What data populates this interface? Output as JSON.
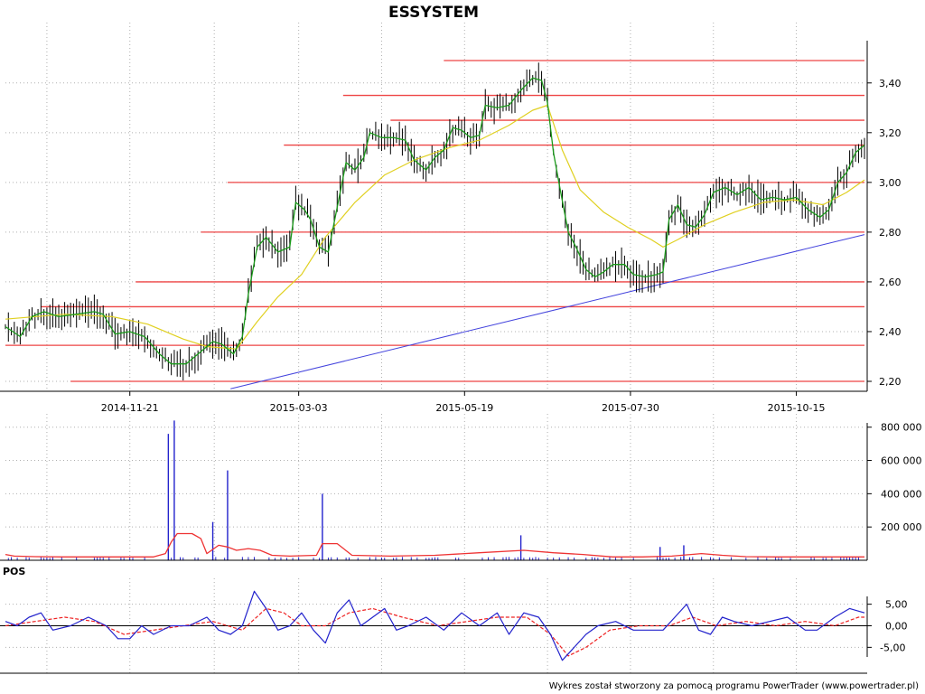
{
  "chart_data": [
    {
      "type": "line",
      "name": "price",
      "title": "ESSYSTEM",
      "x_tick_labels": [
        "2014-11-21",
        "2015-03-03",
        "2015-05-19",
        "2015-07-30",
        "2015-10-15"
      ],
      "y_tick_labels": [
        "2,20",
        "2,40",
        "2,60",
        "2,80",
        "3,00",
        "3,20",
        "3,40"
      ],
      "y_ticks": [
        2.2,
        2.4,
        2.6,
        2.8,
        3.0,
        3.2,
        3.4
      ],
      "ylim": [
        2.16,
        3.57
      ],
      "n_sessions": 290,
      "x_tick_sessions": [
        42,
        99,
        155,
        211,
        267
      ],
      "green_ma_points": [
        [
          0,
          2.42
        ],
        [
          5,
          2.38
        ],
        [
          9,
          2.46
        ],
        [
          13,
          2.48
        ],
        [
          18,
          2.46
        ],
        [
          24,
          2.47
        ],
        [
          30,
          2.48
        ],
        [
          33,
          2.47
        ],
        [
          37,
          2.39
        ],
        [
          42,
          2.4
        ],
        [
          47,
          2.38
        ],
        [
          52,
          2.31
        ],
        [
          56,
          2.27
        ],
        [
          61,
          2.27
        ],
        [
          65,
          2.31
        ],
        [
          70,
          2.36
        ],
        [
          73,
          2.35
        ],
        [
          77,
          2.31
        ],
        [
          80,
          2.38
        ],
        [
          82,
          2.55
        ],
        [
          85,
          2.74
        ],
        [
          88,
          2.78
        ],
        [
          92,
          2.72
        ],
        [
          96,
          2.74
        ],
        [
          98,
          2.92
        ],
        [
          101,
          2.89
        ],
        [
          103,
          2.85
        ],
        [
          106,
          2.74
        ],
        [
          109,
          2.72
        ],
        [
          112,
          2.9
        ],
        [
          115,
          3.08
        ],
        [
          118,
          3.05
        ],
        [
          121,
          3.1
        ],
        [
          123,
          3.2
        ],
        [
          127,
          3.18
        ],
        [
          131,
          3.18
        ],
        [
          135,
          3.17
        ],
        [
          138,
          3.09
        ],
        [
          142,
          3.05
        ],
        [
          145,
          3.1
        ],
        [
          148,
          3.13
        ],
        [
          151,
          3.22
        ],
        [
          154,
          3.21
        ],
        [
          157,
          3.18
        ],
        [
          160,
          3.19
        ],
        [
          162,
          3.31
        ],
        [
          166,
          3.3
        ],
        [
          170,
          3.31
        ],
        [
          174,
          3.37
        ],
        [
          178,
          3.42
        ],
        [
          181,
          3.41
        ],
        [
          183,
          3.32
        ],
        [
          185,
          3.12
        ],
        [
          187,
          2.99
        ],
        [
          190,
          2.8
        ],
        [
          193,
          2.73
        ],
        [
          196,
          2.65
        ],
        [
          199,
          2.62
        ],
        [
          202,
          2.64
        ],
        [
          205,
          2.67
        ],
        [
          209,
          2.67
        ],
        [
          212,
          2.63
        ],
        [
          216,
          2.62
        ],
        [
          220,
          2.63
        ],
        [
          222,
          2.64
        ],
        [
          224,
          2.85
        ],
        [
          227,
          2.91
        ],
        [
          230,
          2.83
        ],
        [
          233,
          2.82
        ],
        [
          236,
          2.87
        ],
        [
          239,
          2.96
        ],
        [
          243,
          2.98
        ],
        [
          247,
          2.95
        ],
        [
          251,
          2.98
        ],
        [
          255,
          2.93
        ],
        [
          259,
          2.94
        ],
        [
          263,
          2.93
        ],
        [
          267,
          2.94
        ],
        [
          271,
          2.89
        ],
        [
          275,
          2.86
        ],
        [
          278,
          2.89
        ],
        [
          281,
          3.0
        ],
        [
          284,
          3.04
        ],
        [
          287,
          3.12
        ],
        [
          290,
          3.15
        ]
      ],
      "yellow_ma_points": [
        [
          0,
          2.45
        ],
        [
          20,
          2.47
        ],
        [
          36,
          2.46
        ],
        [
          48,
          2.43
        ],
        [
          60,
          2.37
        ],
        [
          68,
          2.34
        ],
        [
          78,
          2.33
        ],
        [
          85,
          2.44
        ],
        [
          92,
          2.54
        ],
        [
          100,
          2.63
        ],
        [
          108,
          2.78
        ],
        [
          118,
          2.92
        ],
        [
          128,
          3.03
        ],
        [
          138,
          3.09
        ],
        [
          150,
          3.14
        ],
        [
          160,
          3.17
        ],
        [
          170,
          3.23
        ],
        [
          178,
          3.29
        ],
        [
          183,
          3.31
        ],
        [
          188,
          3.13
        ],
        [
          194,
          2.97
        ],
        [
          202,
          2.88
        ],
        [
          210,
          2.82
        ],
        [
          218,
          2.77
        ],
        [
          222,
          2.74
        ],
        [
          227,
          2.77
        ],
        [
          236,
          2.83
        ],
        [
          246,
          2.88
        ],
        [
          256,
          2.92
        ],
        [
          266,
          2.93
        ],
        [
          276,
          2.91
        ],
        [
          284,
          2.96
        ],
        [
          290,
          3.01
        ]
      ],
      "support_resistance_levels": [
        {
          "value": 2.2,
          "from_session": 22
        },
        {
          "value": 2.345,
          "from_session": 0
        },
        {
          "value": 2.5,
          "from_session": 12
        },
        {
          "value": 2.6,
          "from_session": 44
        },
        {
          "value": 2.8,
          "from_session": 66
        },
        {
          "value": 3.0,
          "from_session": 75
        },
        {
          "value": 3.15,
          "from_session": 94
        },
        {
          "value": 3.25,
          "from_session": 130
        },
        {
          "value": 3.35,
          "from_session": 114
        },
        {
          "value": 3.49,
          "from_session": 148
        }
      ],
      "trendline": {
        "x1": 76,
        "y1": 2.17,
        "x2": 290,
        "y2": 2.79
      }
    },
    {
      "type": "bar",
      "name": "volume",
      "y_tick_labels": [
        "200 000",
        "400 000",
        "600 000",
        "800 000"
      ],
      "y_ticks": [
        200000,
        400000,
        600000,
        800000
      ],
      "ylim": [
        0,
        880000
      ],
      "volume_spikes": [
        {
          "session": 55,
          "value": 760000
        },
        {
          "session": 57,
          "value": 840000
        },
        {
          "session": 70,
          "value": 230000
        },
        {
          "session": 75,
          "value": 540000
        },
        {
          "session": 107,
          "value": 400000
        },
        {
          "session": 174,
          "value": 150000
        },
        {
          "session": 221,
          "value": 80000
        },
        {
          "session": 229,
          "value": 90000
        }
      ],
      "volume_ma_points": [
        [
          0,
          35000
        ],
        [
          3,
          25000
        ],
        [
          10,
          22000
        ],
        [
          20,
          20000
        ],
        [
          30,
          20000
        ],
        [
          40,
          20000
        ],
        [
          50,
          20000
        ],
        [
          54,
          40000
        ],
        [
          56,
          110000
        ],
        [
          58,
          160000
        ],
        [
          63,
          160000
        ],
        [
          66,
          130000
        ],
        [
          68,
          40000
        ],
        [
          72,
          90000
        ],
        [
          75,
          80000
        ],
        [
          78,
          60000
        ],
        [
          82,
          70000
        ],
        [
          86,
          60000
        ],
        [
          90,
          30000
        ],
        [
          96,
          25000
        ],
        [
          105,
          30000
        ],
        [
          107,
          100000
        ],
        [
          112,
          100000
        ],
        [
          117,
          30000
        ],
        [
          130,
          25000
        ],
        [
          145,
          30000
        ],
        [
          160,
          45000
        ],
        [
          175,
          60000
        ],
        [
          185,
          45000
        ],
        [
          195,
          35000
        ],
        [
          205,
          20000
        ],
        [
          215,
          20000
        ],
        [
          225,
          25000
        ],
        [
          235,
          40000
        ],
        [
          242,
          30000
        ],
        [
          250,
          22000
        ],
        [
          260,
          20000
        ],
        [
          270,
          20000
        ],
        [
          280,
          20000
        ],
        [
          290,
          20000
        ]
      ]
    },
    {
      "type": "line",
      "name": "oscillator",
      "panel_label": "POS",
      "y_tick_labels": [
        "5,00",
        "0,00",
        "-5,00"
      ],
      "y_ticks": [
        5,
        0,
        -5
      ],
      "ylim": [
        -11,
        11
      ],
      "blue_points": [
        [
          0,
          1
        ],
        [
          4,
          0
        ],
        [
          8,
          2
        ],
        [
          12,
          3
        ],
        [
          16,
          -1
        ],
        [
          22,
          0
        ],
        [
          28,
          2
        ],
        [
          34,
          0
        ],
        [
          38,
          -3
        ],
        [
          42,
          -3
        ],
        [
          46,
          0
        ],
        [
          50,
          -2
        ],
        [
          56,
          0
        ],
        [
          62,
          0
        ],
        [
          68,
          2
        ],
        [
          72,
          -1
        ],
        [
          76,
          -2
        ],
        [
          80,
          0
        ],
        [
          84,
          8
        ],
        [
          88,
          4
        ],
        [
          92,
          -1
        ],
        [
          96,
          0
        ],
        [
          100,
          3
        ],
        [
          104,
          -1
        ],
        [
          108,
          -4
        ],
        [
          112,
          3
        ],
        [
          116,
          6
        ],
        [
          120,
          0
        ],
        [
          124,
          2
        ],
        [
          128,
          4
        ],
        [
          132,
          -1
        ],
        [
          136,
          0
        ],
        [
          142,
          2
        ],
        [
          148,
          -1
        ],
        [
          154,
          3
        ],
        [
          160,
          0
        ],
        [
          166,
          3
        ],
        [
          170,
          -2
        ],
        [
          175,
          3
        ],
        [
          180,
          2
        ],
        [
          184,
          -2
        ],
        [
          188,
          -8
        ],
        [
          192,
          -5
        ],
        [
          196,
          -2
        ],
        [
          200,
          0
        ],
        [
          206,
          1
        ],
        [
          212,
          -1
        ],
        [
          218,
          -1
        ],
        [
          222,
          -1
        ],
        [
          226,
          2
        ],
        [
          230,
          5
        ],
        [
          234,
          -1
        ],
        [
          238,
          -2
        ],
        [
          242,
          2
        ],
        [
          246,
          1
        ],
        [
          252,
          0
        ],
        [
          258,
          1
        ],
        [
          264,
          2
        ],
        [
          270,
          -1
        ],
        [
          274,
          -1
        ],
        [
          280,
          2
        ],
        [
          285,
          4
        ],
        [
          290,
          3
        ]
      ],
      "red_points": [
        [
          0,
          0
        ],
        [
          10,
          1
        ],
        [
          20,
          2
        ],
        [
          30,
          1
        ],
        [
          40,
          -2
        ],
        [
          50,
          -1
        ],
        [
          60,
          0
        ],
        [
          70,
          1
        ],
        [
          80,
          -1
        ],
        [
          88,
          4
        ],
        [
          94,
          3
        ],
        [
          100,
          0
        ],
        [
          108,
          0
        ],
        [
          116,
          3
        ],
        [
          124,
          4
        ],
        [
          134,
          2
        ],
        [
          146,
          0
        ],
        [
          156,
          1
        ],
        [
          166,
          2
        ],
        [
          176,
          2
        ],
        [
          184,
          -2
        ],
        [
          190,
          -7
        ],
        [
          196,
          -5
        ],
        [
          204,
          -1
        ],
        [
          214,
          0
        ],
        [
          224,
          0
        ],
        [
          232,
          2
        ],
        [
          240,
          0
        ],
        [
          250,
          1
        ],
        [
          260,
          0
        ],
        [
          270,
          1
        ],
        [
          280,
          0
        ],
        [
          288,
          2
        ],
        [
          290,
          2
        ]
      ]
    }
  ],
  "footer_text": "Wykres został stworzony za pomocą programu PowerTrader (www.powertrader.pl)"
}
